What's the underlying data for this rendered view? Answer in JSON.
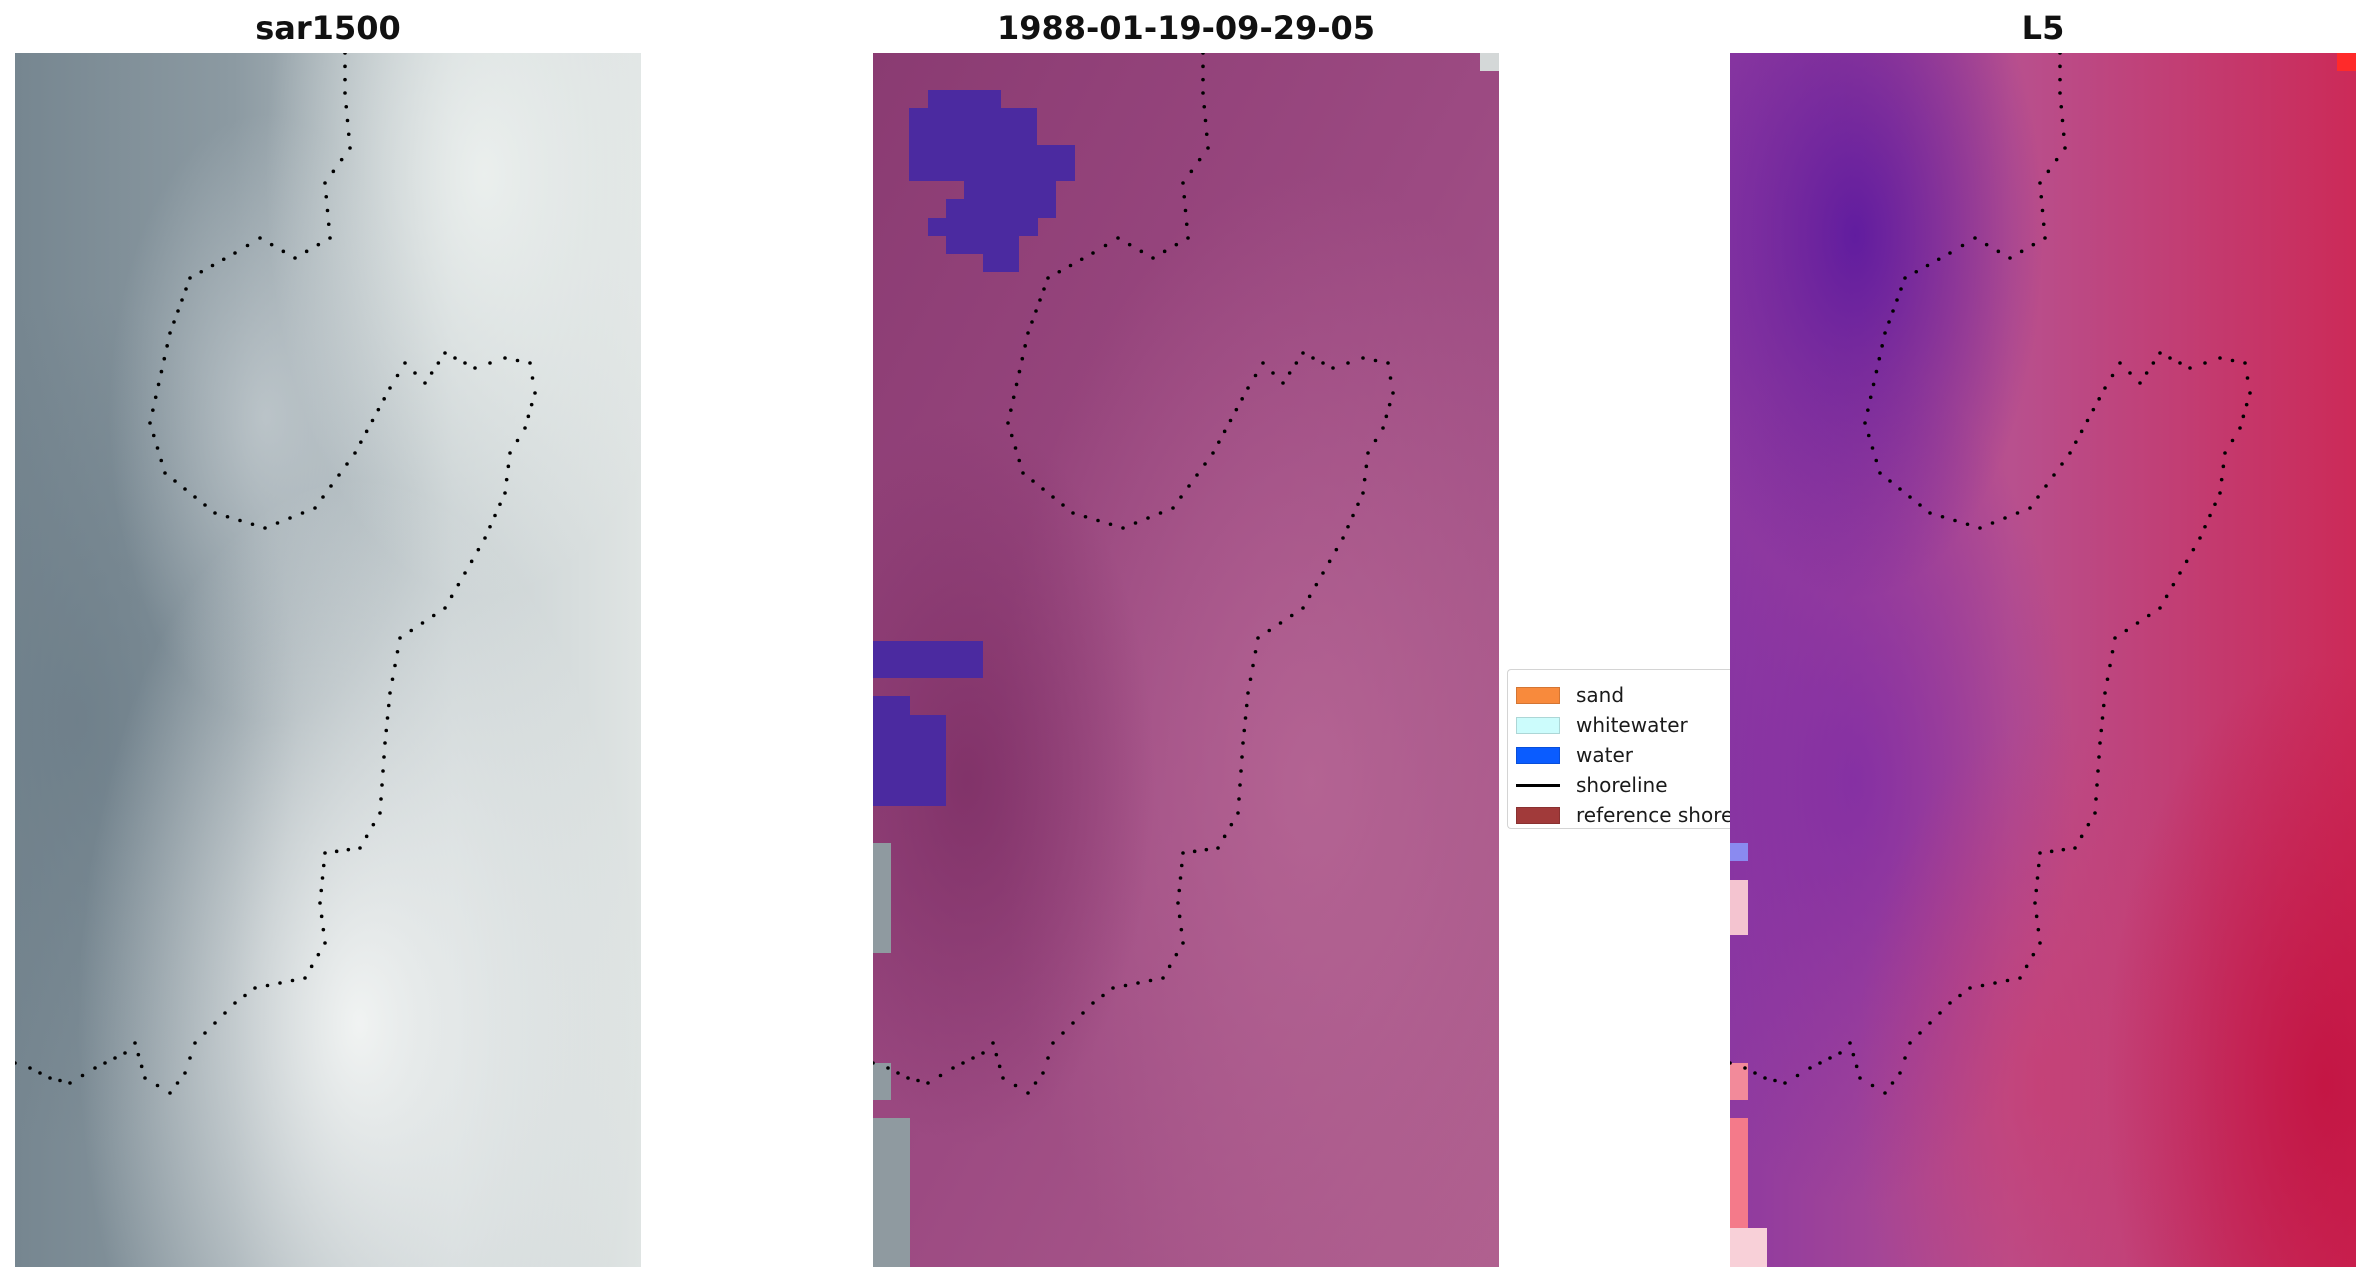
{
  "panels": [
    {
      "title": "sar1500"
    },
    {
      "title": "1988-01-19-09-29-05"
    },
    {
      "title": "L5"
    }
  ],
  "legend": {
    "items": [
      {
        "label": "sand",
        "color": "#f88a3c",
        "kind": "patch"
      },
      {
        "label": "whitewater",
        "color": "#ccfcfc",
        "kind": "patch"
      },
      {
        "label": "water",
        "color": "#0a5cff",
        "kind": "patch"
      },
      {
        "label": "shoreline",
        "color": "#000000",
        "kind": "line"
      },
      {
        "label": "reference shoreline",
        "color": "#a13a3a",
        "kind": "patch"
      }
    ]
  },
  "colors": {
    "water_overlay": "#4b2aa0",
    "shoreline_dots": "#000000"
  }
}
